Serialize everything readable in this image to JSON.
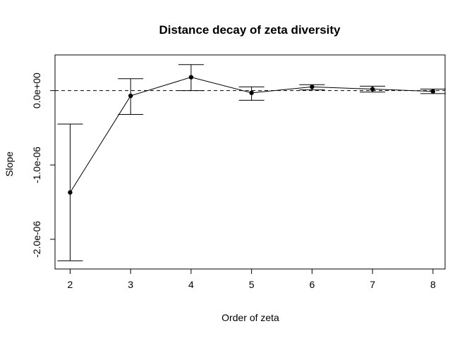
{
  "chart_data": {
    "type": "line",
    "title": "Distance decay of zeta diversity",
    "xlabel": "Order of zeta",
    "ylabel": "Slope",
    "x": [
      2,
      3,
      4,
      5,
      6,
      7,
      8
    ],
    "x_ticks": [
      "2",
      "3",
      "4",
      "5",
      "6",
      "7",
      "8"
    ],
    "y_ticks": [
      {
        "value": 0,
        "label": "0.0e+00"
      },
      {
        "value": -1e-06,
        "label": "-1.0e-06"
      },
      {
        "value": -2e-06,
        "label": "-2.0e-06"
      }
    ],
    "xlim": [
      1.75,
      8.2
    ],
    "ylim": [
      -2.4e-06,
      4.8e-07
    ],
    "reference_line": 0,
    "series": [
      {
        "values": [
          -1.37e-06,
          -7e-08,
          1.8e-07,
          -3e-08,
          5e-08,
          2e-08,
          -1e-08
        ],
        "error_low": [
          -2.29e-06,
          -3.2e-07,
          0.0,
          -1.3e-07,
          1e-08,
          -2e-08,
          -4e-08
        ],
        "error_high": [
          -4.5e-07,
          1.6e-07,
          3.5e-07,
          5e-08,
          8e-08,
          6e-08,
          2e-08
        ]
      }
    ],
    "grid": false,
    "legend": "none"
  }
}
